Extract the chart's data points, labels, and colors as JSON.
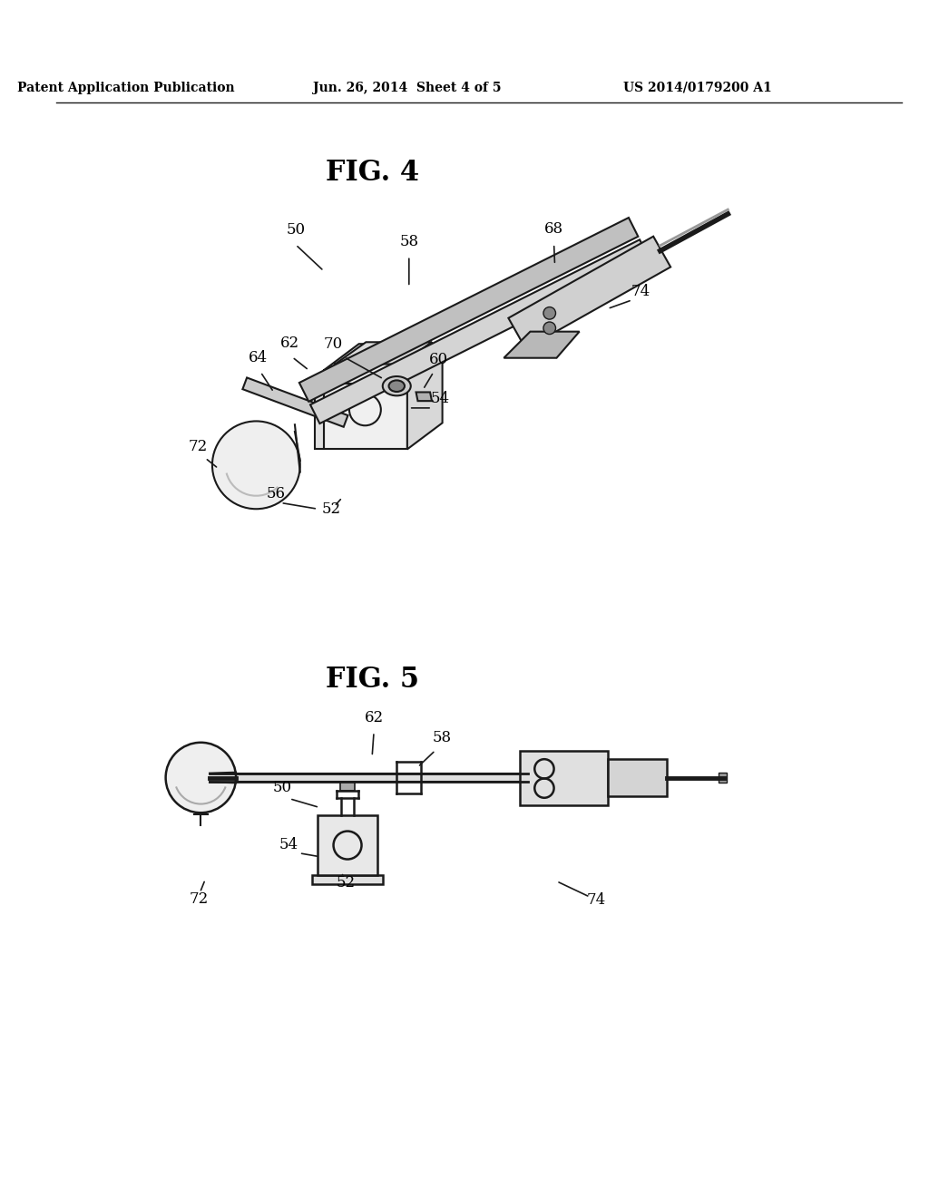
{
  "bg_color": "#ffffff",
  "header_left": "Patent Application Publication",
  "header_center": "Jun. 26, 2014  Sheet 4 of 5",
  "header_right": "US 2014/0179200 A1",
  "fig4_title": "FIG. 4",
  "fig5_title": "FIG. 5",
  "line_color": "#1a1a1a",
  "text_color": "#000000"
}
